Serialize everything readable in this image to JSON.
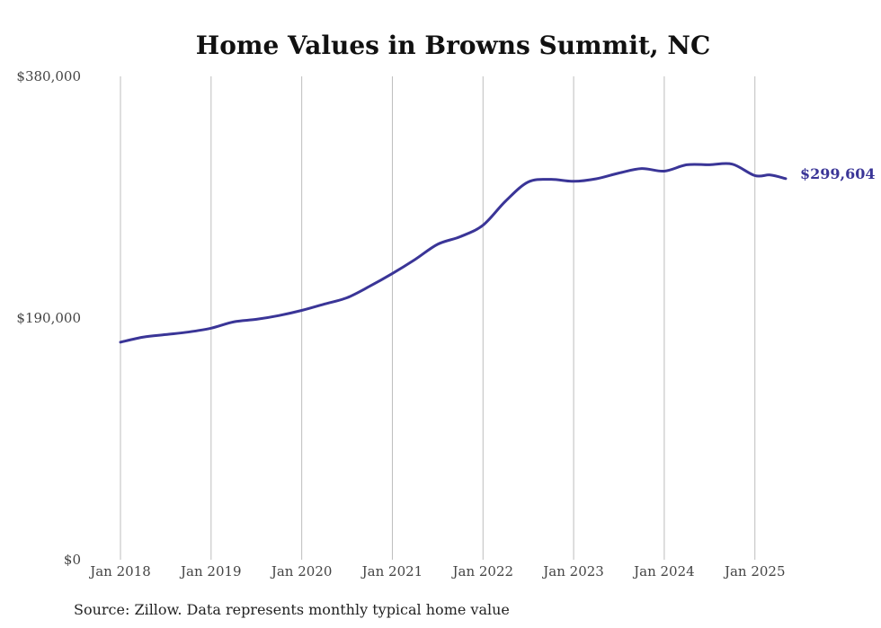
{
  "chart_data": {
    "type": "line",
    "title": "Home Values in Browns Summit, NC",
    "xlabel": "",
    "ylabel": "",
    "ylim": [
      0,
      380000
    ],
    "y_ticks": [
      {
        "value": 0,
        "label": "$0"
      },
      {
        "value": 190000,
        "label": "$190,000"
      },
      {
        "value": 380000,
        "label": "$380,000"
      }
    ],
    "x_ticks": [
      {
        "value": 2018,
        "label": "Jan 2018"
      },
      {
        "value": 2019,
        "label": "Jan 2019"
      },
      {
        "value": 2020,
        "label": "Jan 2020"
      },
      {
        "value": 2021,
        "label": "Jan 2021"
      },
      {
        "value": 2022,
        "label": "Jan 2022"
      },
      {
        "value": 2023,
        "label": "Jan 2023"
      },
      {
        "value": 2024,
        "label": "Jan 2024"
      },
      {
        "value": 2025,
        "label": "Jan 2025"
      }
    ],
    "xlim": [
      2018,
      2025.34
    ],
    "grid": "vertical",
    "legend": "none",
    "series": [
      {
        "color": "#3a3597",
        "end_label": "$299,604",
        "points": [
          [
            2018.0,
            171000
          ],
          [
            2018.25,
            175000
          ],
          [
            2018.5,
            177000
          ],
          [
            2018.75,
            179000
          ],
          [
            2019.0,
            182000
          ],
          [
            2019.25,
            187000
          ],
          [
            2019.5,
            189000
          ],
          [
            2019.75,
            192000
          ],
          [
            2020.0,
            196000
          ],
          [
            2020.25,
            201000
          ],
          [
            2020.5,
            206000
          ],
          [
            2020.75,
            215000
          ],
          [
            2021.0,
            225000
          ],
          [
            2021.25,
            236000
          ],
          [
            2021.5,
            248000
          ],
          [
            2021.75,
            254000
          ],
          [
            2022.0,
            263000
          ],
          [
            2022.25,
            282000
          ],
          [
            2022.5,
            297000
          ],
          [
            2022.75,
            299000
          ],
          [
            2023.0,
            297500
          ],
          [
            2023.25,
            299500
          ],
          [
            2023.5,
            304000
          ],
          [
            2023.75,
            307500
          ],
          [
            2024.0,
            305500
          ],
          [
            2024.25,
            310500
          ],
          [
            2024.5,
            310500
          ],
          [
            2024.75,
            311000
          ],
          [
            2025.0,
            302000
          ],
          [
            2025.17,
            302500
          ],
          [
            2025.34,
            299604
          ]
        ]
      }
    ],
    "source": "Source: Zillow. Data represents monthly typical home value"
  }
}
